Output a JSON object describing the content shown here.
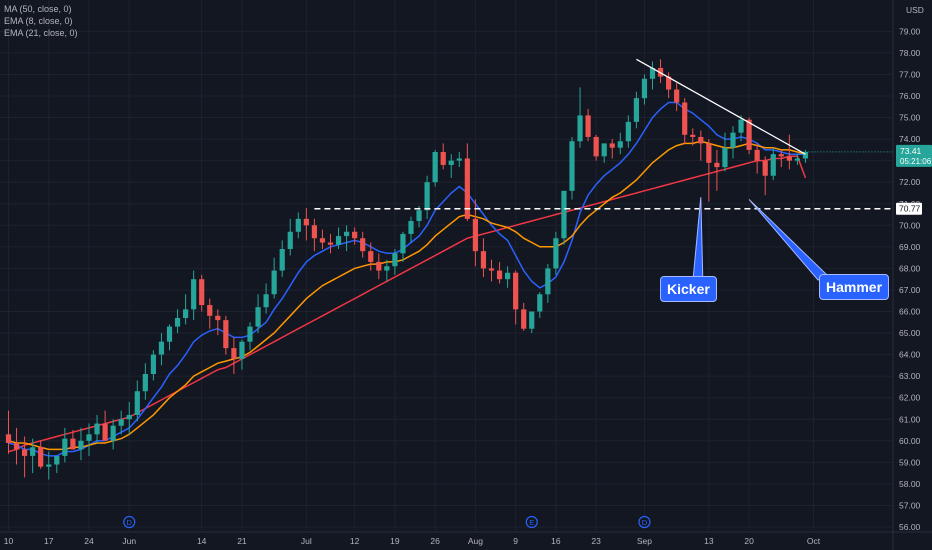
{
  "legend": {
    "ma50": "MA (50, close, 0)",
    "ema8": "EMA (8, close, 0)",
    "ema21": "EMA (21, close, 0)"
  },
  "colors": {
    "background": "#131722",
    "grid": "#1e222d",
    "up": "#26a69a",
    "down": "#ef5350",
    "ma50": "#f23645",
    "ema8": "#2962ff",
    "ema21": "#ff9800",
    "price_label_bg": "#26a69a",
    "callout_bg": "#2962ff"
  },
  "chart_data": {
    "type": "candlestick",
    "currency_unit": "USD",
    "ylim": [
      56,
      80
    ],
    "grid": true,
    "y_ticks": [
      "56.00",
      "57.00",
      "58.00",
      "59.00",
      "60.00",
      "61.00",
      "62.00",
      "63.00",
      "64.00",
      "65.00",
      "66.00",
      "67.00",
      "68.00",
      "69.00",
      "70.00",
      "71.00",
      "72.00",
      "73.00",
      "74.00",
      "75.00",
      "76.00",
      "77.00",
      "78.00",
      "79.00"
    ],
    "x_ticks": [
      {
        "label": "10",
        "bar": 0
      },
      {
        "label": "17",
        "bar": 5
      },
      {
        "label": "24",
        "bar": 10
      },
      {
        "label": "Jun",
        "bar": 15
      },
      {
        "label": "14",
        "bar": 24
      },
      {
        "label": "21",
        "bar": 29
      },
      {
        "label": "Jul",
        "bar": 37
      },
      {
        "label": "12",
        "bar": 43
      },
      {
        "label": "19",
        "bar": 48
      },
      {
        "label": "26",
        "bar": 53
      },
      {
        "label": "Aug",
        "bar": 58
      },
      {
        "label": "9",
        "bar": 63
      },
      {
        "label": "16",
        "bar": 68
      },
      {
        "label": "23",
        "bar": 73
      },
      {
        "label": "Sep",
        "bar": 79
      },
      {
        "label": "13",
        "bar": 87
      },
      {
        "label": "20",
        "bar": 92
      },
      {
        "label": "Oct",
        "bar": 100
      }
    ],
    "event_markers": [
      {
        "label": "D",
        "bar": 15
      },
      {
        "label": "E",
        "bar": 65
      },
      {
        "label": "D",
        "bar": 79
      }
    ],
    "candles": {
      "open": [
        60.3,
        59.9,
        59.6,
        59.3,
        59.7,
        58.8,
        58.9,
        59.3,
        60.1,
        59.6,
        60.0,
        60.3,
        60.8,
        60.0,
        60.7,
        61.0,
        61.2,
        62.3,
        63.1,
        64.0,
        64.6,
        65.3,
        65.7,
        66.1,
        67.5,
        66.3,
        65.8,
        65.6,
        64.3,
        63.8,
        64.6,
        65.3,
        66.2,
        66.8,
        67.9,
        68.9,
        69.7,
        70.3,
        70.0,
        69.4,
        69.2,
        69.1,
        69.5,
        69.7,
        69.4,
        68.8,
        68.3,
        67.9,
        68.1,
        68.7,
        69.6,
        70.2,
        70.7,
        72.0,
        73.4,
        72.8,
        73.0,
        73.1,
        70.3,
        68.8,
        68.0,
        67.9,
        67.5,
        67.8,
        66.1,
        65.2,
        66.0,
        66.8,
        68.0,
        69.4,
        71.6,
        73.9,
        75.1,
        74.1,
        73.2,
        73.8,
        73.6,
        73.9,
        74.8,
        75.9,
        76.8,
        77.3,
        76.9,
        76.3,
        75.7,
        74.2,
        74.1,
        73.8,
        72.9,
        72.7,
        73.6,
        74.3,
        74.9,
        73.5,
        73.0,
        72.3,
        73.3,
        73.2,
        73.0,
        73.1
      ],
      "high": [
        61.4,
        60.6,
        60.2,
        60.1,
        60.0,
        59.5,
        59.3,
        60.6,
        60.5,
        60.6,
        60.8,
        61.2,
        61.4,
        61.0,
        61.4,
        61.8,
        62.8,
        63.6,
        64.2,
        65.0,
        65.4,
        66.1,
        66.8,
        67.9,
        67.7,
        66.6,
        66.1,
        65.8,
        64.8,
        64.7,
        65.5,
        66.8,
        67.3,
        68.5,
        69.3,
        70.3,
        70.6,
        70.8,
        70.3,
        69.8,
        69.6,
        69.9,
        70.0,
        69.9,
        69.7,
        69.2,
        68.7,
        68.4,
        68.9,
        69.7,
        70.4,
        70.9,
        72.3,
        73.5,
        73.8,
        73.3,
        73.4,
        73.8,
        71.2,
        69.4,
        68.4,
        68.3,
        68.1,
        67.9,
        66.4,
        65.9,
        66.9,
        68.2,
        69.7,
        71.6,
        74.1,
        76.4,
        75.4,
        74.2,
        73.8,
        74.0,
        74.3,
        75.1,
        76.2,
        77.0,
        77.6,
        77.7,
        77.1,
        76.6,
        75.9,
        74.5,
        74.4,
        74.0,
        73.5,
        74.3,
        74.6,
        75.1,
        75.0,
        73.8,
        73.2,
        73.6,
        73.5,
        74.2,
        73.3,
        73.5
      ],
      "low": [
        59.4,
        58.9,
        58.3,
        58.5,
        58.7,
        58.2,
        58.5,
        59.0,
        59.6,
        59.1,
        59.3,
        59.9,
        60.2,
        59.6,
        60.3,
        60.3,
        60.9,
        61.9,
        62.8,
        63.5,
        64.2,
        65.0,
        65.4,
        65.6,
        66.0,
        65.2,
        64.9,
        64.0,
        63.1,
        63.3,
        64.2,
        65.0,
        65.9,
        66.6,
        67.6,
        68.6,
        69.4,
        69.3,
        68.8,
        68.9,
        68.7,
        68.9,
        68.8,
        69.1,
        68.5,
        67.9,
        67.5,
        67.4,
        67.7,
        68.3,
        69.2,
        69.9,
        70.3,
        71.8,
        72.6,
        72.2,
        72.7,
        70.2,
        68.1,
        67.6,
        67.4,
        67.3,
        67.1,
        65.4,
        65.1,
        65.0,
        65.7,
        66.4,
        67.7,
        69.1,
        71.2,
        73.6,
        73.9,
        73.0,
        72.9,
        73.1,
        73.3,
        73.6,
        74.5,
        75.6,
        76.3,
        76.6,
        75.9,
        75.3,
        73.8,
        73.7,
        73.0,
        71.1,
        71.6,
        72.5,
        73.1,
        73.9,
        73.3,
        72.4,
        71.4,
        72.1,
        72.7,
        72.6,
        72.8,
        72.9
      ],
      "close": [
        59.9,
        59.6,
        59.3,
        59.7,
        58.8,
        58.9,
        59.3,
        60.1,
        59.6,
        60.0,
        60.3,
        60.8,
        60.0,
        60.7,
        61.0,
        61.2,
        62.3,
        63.1,
        64.0,
        64.6,
        65.3,
        65.7,
        66.1,
        67.5,
        66.3,
        65.8,
        65.6,
        64.3,
        63.8,
        64.6,
        65.3,
        66.2,
        66.8,
        67.9,
        68.9,
        69.7,
        70.3,
        70.0,
        69.4,
        69.2,
        69.1,
        69.5,
        69.7,
        69.4,
        68.8,
        68.3,
        67.9,
        68.1,
        68.7,
        69.6,
        70.2,
        70.7,
        72.0,
        73.4,
        72.8,
        73.0,
        73.1,
        70.3,
        68.8,
        68.0,
        67.9,
        67.5,
        67.8,
        66.1,
        65.2,
        66.0,
        66.8,
        68.0,
        69.4,
        71.6,
        73.9,
        75.1,
        74.1,
        73.2,
        73.8,
        73.6,
        73.9,
        74.8,
        75.9,
        76.8,
        77.3,
        76.9,
        76.3,
        75.7,
        74.2,
        74.1,
        73.8,
        72.9,
        72.7,
        73.6,
        74.3,
        74.9,
        73.5,
        73.0,
        72.3,
        73.3,
        73.2,
        73.0,
        73.1,
        73.41
      ]
    },
    "series": [
      {
        "name": "MA (50, close, 0)",
        "values": [
          59.5,
          59.6,
          59.8,
          59.9,
          60.0,
          60.1,
          60.2,
          60.3,
          60.4,
          60.5,
          60.6,
          60.7,
          60.8,
          60.9,
          61.0,
          61.1,
          61.3,
          61.5,
          61.7,
          61.9,
          62.1,
          62.3,
          62.5,
          62.7,
          62.9,
          63.1,
          63.3,
          63.4,
          63.6,
          63.8,
          64.0,
          64.2,
          64.4,
          64.6,
          64.8,
          65.0,
          65.2,
          65.4,
          65.6,
          65.8,
          66.0,
          66.2,
          66.4,
          66.6,
          66.8,
          67.0,
          67.2,
          67.4,
          67.6,
          67.8,
          68.0,
          68.2,
          68.4,
          68.6,
          68.8,
          69.0,
          69.2,
          69.4,
          69.5,
          69.6,
          69.7,
          69.8,
          69.9,
          70.0,
          70.1,
          70.2,
          70.3,
          70.4,
          70.5,
          70.6,
          70.7,
          70.8,
          70.9,
          71.0,
          71.1,
          71.2,
          71.3,
          71.4,
          71.5,
          71.6,
          71.7,
          71.8,
          71.9,
          72.0,
          72.1,
          72.2,
          72.3,
          72.4,
          72.5,
          72.6,
          72.7,
          72.8,
          72.9,
          73.0,
          73.0,
          73.1,
          73.1,
          73.2,
          73.2,
          72.2
        ]
      },
      {
        "name": "EMA (8, close, 0)",
        "values": [
          59.9,
          59.8,
          59.6,
          59.6,
          59.4,
          59.3,
          59.3,
          59.5,
          59.5,
          59.6,
          59.8,
          60.0,
          60.0,
          60.2,
          60.4,
          60.6,
          61.0,
          61.5,
          62.0,
          62.5,
          63.1,
          63.5,
          64.0,
          64.6,
          64.9,
          65.1,
          65.2,
          65.0,
          64.8,
          64.8,
          64.9,
          65.2,
          65.5,
          66.1,
          66.6,
          67.2,
          67.8,
          68.3,
          68.6,
          68.8,
          69.0,
          69.1,
          69.2,
          69.3,
          69.2,
          69.0,
          68.8,
          68.7,
          68.7,
          68.9,
          69.2,
          69.5,
          70.0,
          70.7,
          71.1,
          71.5,
          71.8,
          71.5,
          71.0,
          70.5,
          70.0,
          69.6,
          69.3,
          68.6,
          67.9,
          67.4,
          67.1,
          67.3,
          67.6,
          68.3,
          69.3,
          70.6,
          71.4,
          71.9,
          72.3,
          72.6,
          72.9,
          73.3,
          73.8,
          74.4,
          75.0,
          75.4,
          75.7,
          75.7,
          75.4,
          75.2,
          74.9,
          74.6,
          74.2,
          74.0,
          74.0,
          74.1,
          74.0,
          73.8,
          73.5,
          73.5,
          73.4,
          73.3,
          73.3,
          73.3
        ]
      },
      {
        "name": "EMA (21, close, 0)",
        "values": [
          60.0,
          59.9,
          59.9,
          59.8,
          59.7,
          59.6,
          59.6,
          59.6,
          59.7,
          59.7,
          59.8,
          59.9,
          59.9,
          60.0,
          60.1,
          60.3,
          60.6,
          60.9,
          61.2,
          61.6,
          62.0,
          62.3,
          62.6,
          63.0,
          63.2,
          63.4,
          63.6,
          63.7,
          63.8,
          63.9,
          64.1,
          64.4,
          64.7,
          65.0,
          65.4,
          65.8,
          66.2,
          66.6,
          66.9,
          67.2,
          67.4,
          67.6,
          67.8,
          68.0,
          68.1,
          68.2,
          68.2,
          68.3,
          68.3,
          68.4,
          68.6,
          68.8,
          69.1,
          69.5,
          69.8,
          70.1,
          70.4,
          70.5,
          70.4,
          70.3,
          70.1,
          70.0,
          69.9,
          69.7,
          69.4,
          69.2,
          69.0,
          69.0,
          69.0,
          69.2,
          69.5,
          70.0,
          70.4,
          70.7,
          71.0,
          71.3,
          71.5,
          71.8,
          72.1,
          72.5,
          72.9,
          73.2,
          73.5,
          73.7,
          73.8,
          73.8,
          73.9,
          73.8,
          73.7,
          73.6,
          73.6,
          73.7,
          73.8,
          73.7,
          73.6,
          73.6,
          73.5,
          73.5,
          73.4,
          73.3
        ]
      }
    ],
    "last_price": {
      "value": "73.41",
      "timer": "05:21:06"
    },
    "level_line": {
      "value": 70.77,
      "label": "70.77",
      "from_bar": 38
    },
    "trendline": {
      "from_bar": 78,
      "from_value": 77.7,
      "to_bar": 99,
      "to_value": 73.3
    },
    "annotations": [
      {
        "label": "Kicker",
        "bar": 86,
        "value": 71.3
      },
      {
        "label": "Hammer",
        "bar": 92,
        "value": 71.2
      }
    ]
  }
}
